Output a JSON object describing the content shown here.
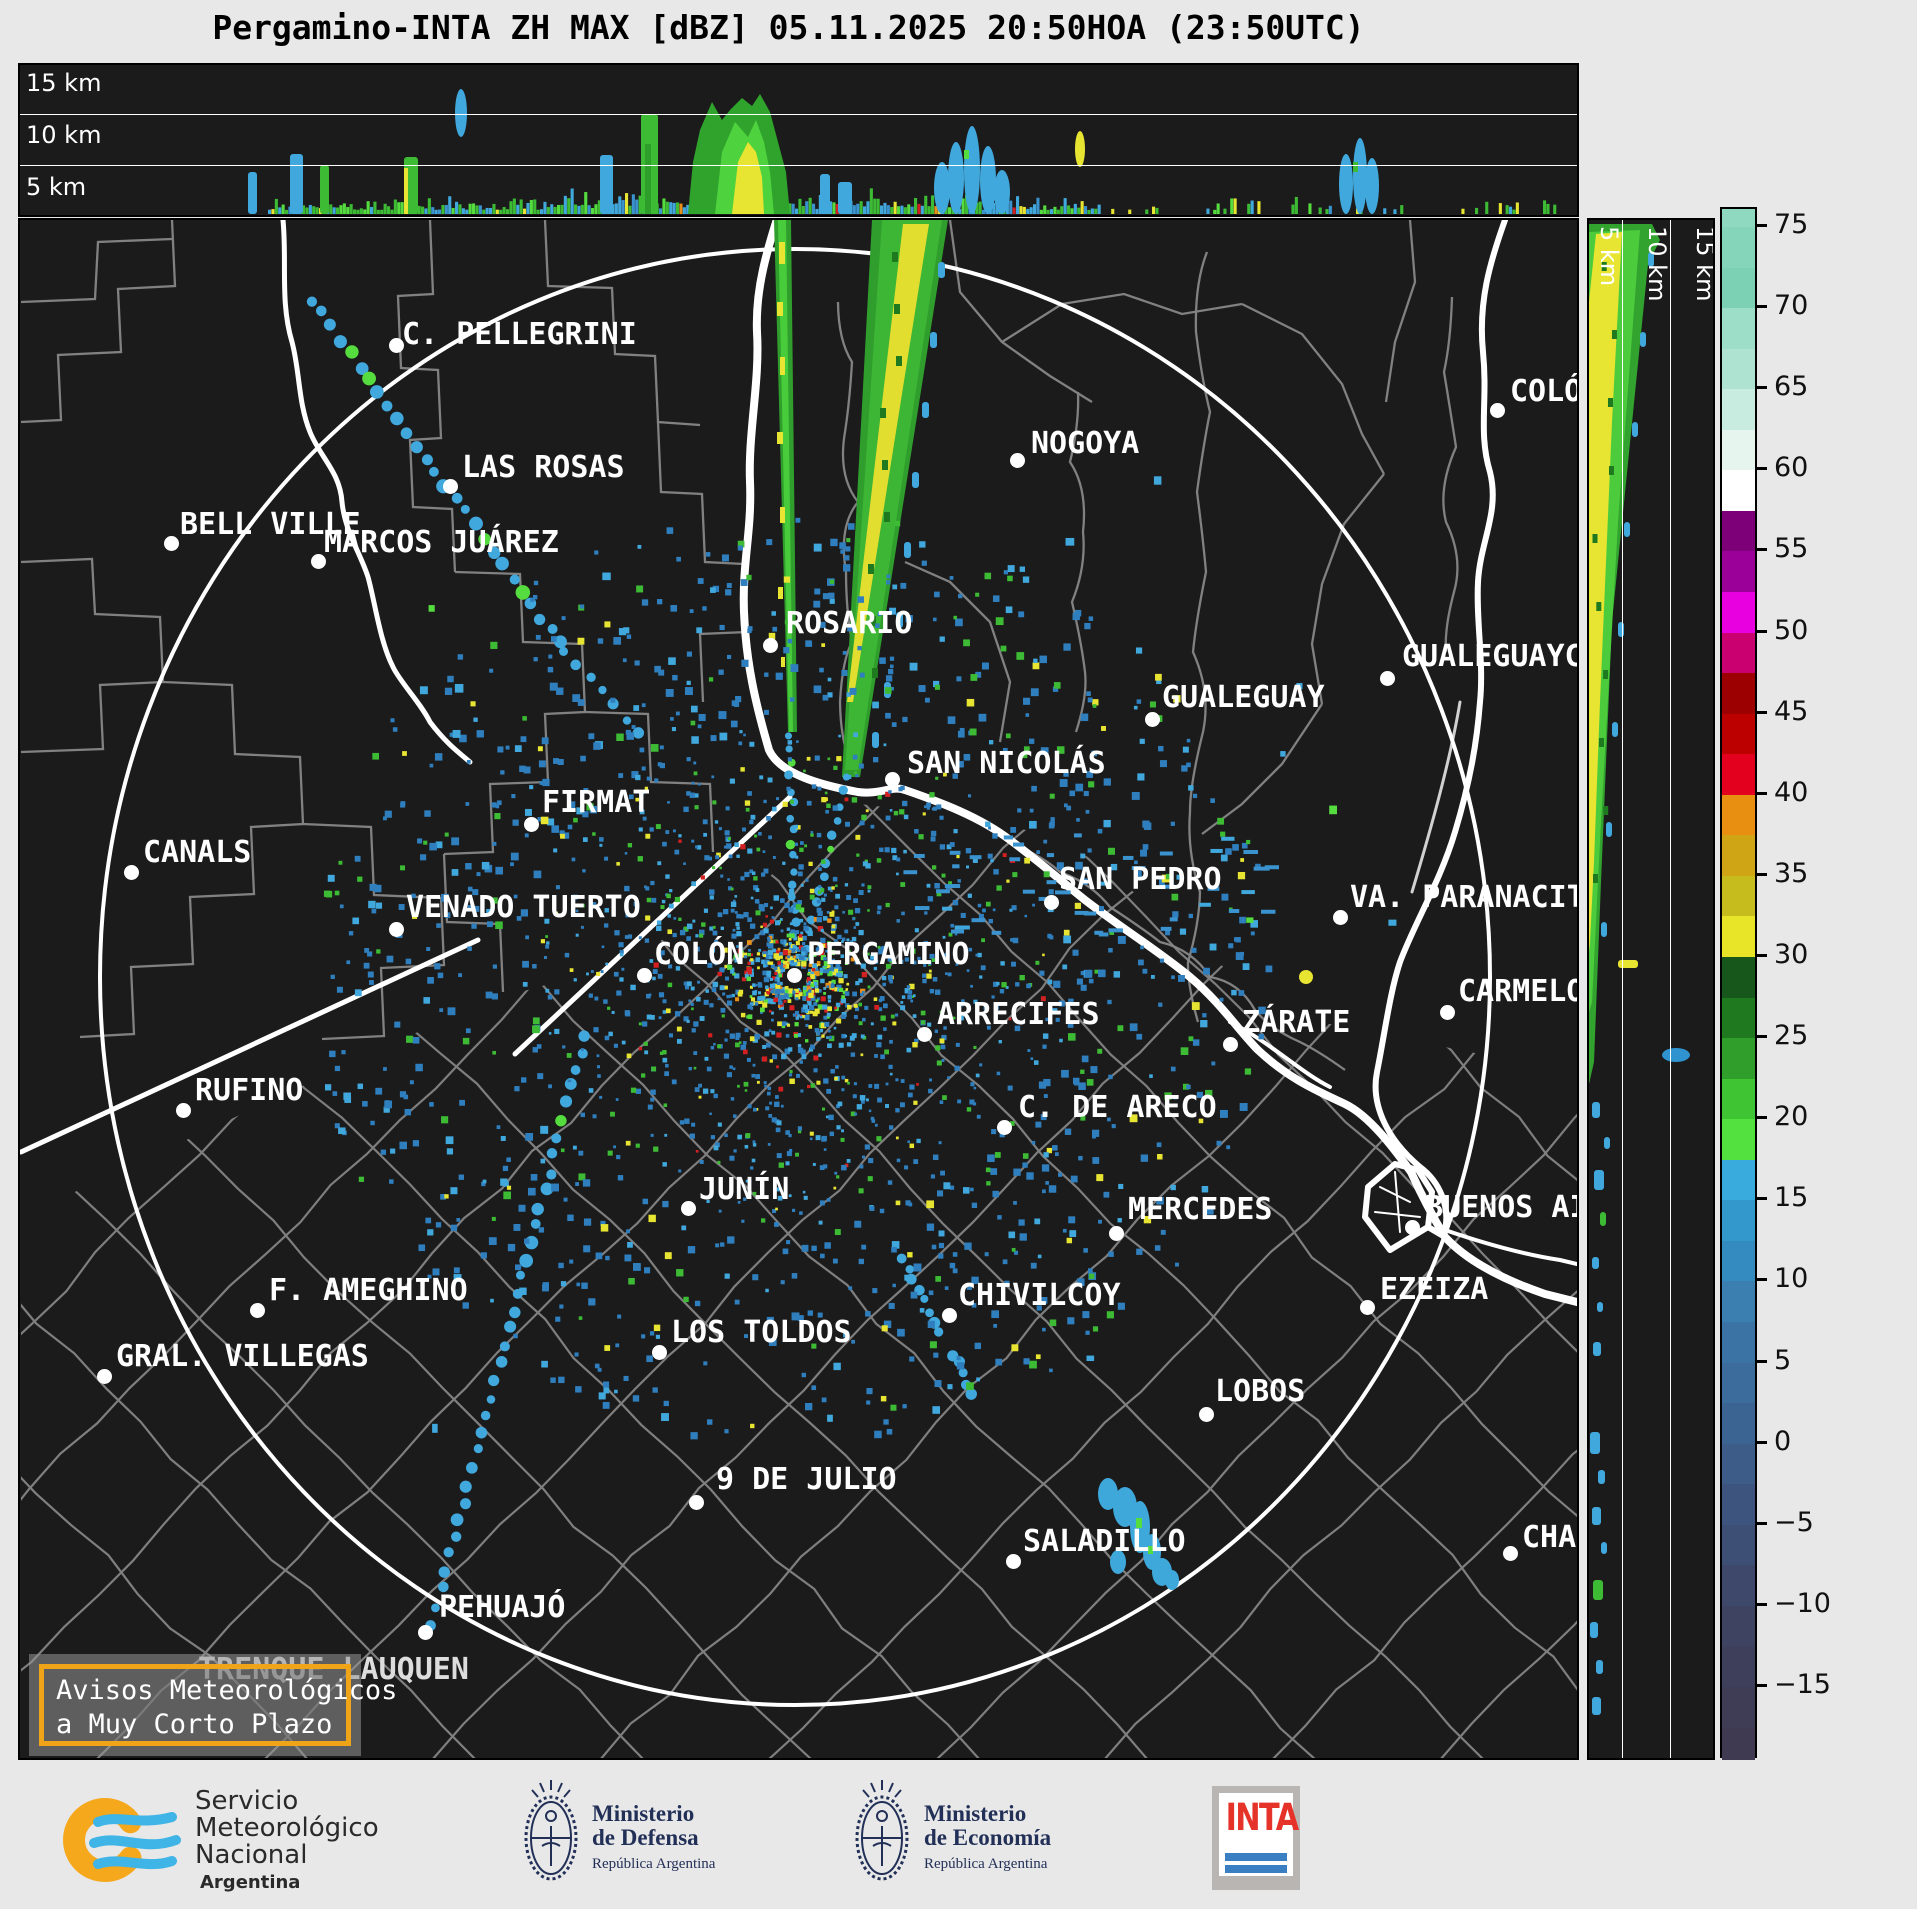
{
  "title": "Pergamino-INTA ZH MAX [dBZ] 05.11.2025 20:50HOA (23:50UTC)",
  "top_panel": {
    "altitudes": [
      "15 km",
      "10 km",
      "5 km"
    ]
  },
  "side_panel": {
    "altitudes": [
      "5 km",
      "10 km",
      "15 km"
    ]
  },
  "colorbar": {
    "tick_labels": [
      "75",
      "70",
      "65",
      "60",
      "55",
      "50",
      "45",
      "40",
      "35",
      "30",
      "25",
      "20",
      "15",
      "10",
      "5",
      "0",
      "−5",
      "−10",
      "−15"
    ],
    "colors": [
      "#8fd9c0",
      "#85d5ba",
      "#7cd1b4",
      "#9cdec8",
      "#aee3d1",
      "#c8ecdf",
      "#e6f6ef",
      "#ffffff",
      "#7d0078",
      "#9b0098",
      "#e800e0",
      "#cb0070",
      "#9c0000",
      "#bc0000",
      "#e3001e",
      "#e88f12",
      "#cfa515",
      "#c6bc1e",
      "#e8e428",
      "#17571b",
      "#1f7a1f",
      "#2f9e2a",
      "#3fc433",
      "#52e13e",
      "#39abdc",
      "#3399cd",
      "#338bbf",
      "#3a7fb0",
      "#3b74a4",
      "#3c6c9b",
      "#3c6492",
      "#3d5c88",
      "#3d557e",
      "#3d4f74",
      "#3e486a",
      "#3e4361",
      "#3e3f5a",
      "#3f3c55",
      "#3f3a51"
    ]
  },
  "map": {
    "cities": [
      {
        "name": "C. PELLEGRINI",
        "label": [
          400,
          315
        ],
        "dot": [
          394,
          343
        ]
      },
      {
        "name": "LAS ROSAS",
        "label": [
          460,
          448
        ],
        "dot": [
          448,
          484
        ]
      },
      {
        "name": "BELL VILLE",
        "label": [
          178,
          505
        ],
        "dot": [
          169,
          541
        ]
      },
      {
        "name": "MARCOS JUÁREZ",
        "label": [
          322,
          523
        ],
        "dot": [
          316,
          559
        ]
      },
      {
        "name": "NOGOYA",
        "label": [
          1029,
          424
        ],
        "dot": [
          1015,
          458
        ]
      },
      {
        "name": "ROSARIO",
        "label": [
          784,
          604
        ],
        "dot": [
          768,
          643
        ]
      },
      {
        "name": "GUALEGUAY",
        "label": [
          1160,
          678
        ],
        "dot": [
          1150,
          717
        ]
      },
      {
        "name": "GUALEGUAYCHÚ",
        "label": [
          1400,
          637
        ],
        "dot": [
          1385,
          676
        ]
      },
      {
        "name": "COLÓN",
        "label": [
          1508,
          372
        ],
        "dot": [
          1495,
          408
        ]
      },
      {
        "name": "SAN NICOLÁS",
        "label": [
          905,
          744
        ],
        "dot": [
          890,
          777
        ]
      },
      {
        "name": "FIRMAT",
        "label": [
          540,
          783
        ],
        "dot": [
          529,
          822
        ]
      },
      {
        "name": "CANALS",
        "label": [
          141,
          833
        ],
        "dot": [
          129,
          870
        ]
      },
      {
        "name": "VENADO TUERTO",
        "label": [
          404,
          888
        ],
        "dot": [
          394,
          927
        ]
      },
      {
        "name": "SAN PEDRO",
        "label": [
          1057,
          860
        ],
        "dot": [
          1049,
          900
        ]
      },
      {
        "name": "VA. PARANACITO",
        "label": [
          1348,
          878
        ],
        "dot": [
          1338,
          915
        ]
      },
      {
        "name": "COLÓN",
        "label": [
          652,
          935
        ],
        "dot": [
          642,
          973
        ]
      },
      {
        "name": "PERGAMINO",
        "label": [
          805,
          935
        ],
        "dot": [
          792,
          973
        ]
      },
      {
        "name": "ARRECIFES",
        "label": [
          935,
          995
        ],
        "dot": [
          922,
          1032
        ]
      },
      {
        "name": "CARMELO",
        "label": [
          1456,
          972
        ],
        "dot": [
          1445,
          1010
        ]
      },
      {
        "name": "ZÁRATE",
        "label": [
          1240,
          1003
        ],
        "dot": [
          1228,
          1042
        ]
      },
      {
        "name": "RUFINO",
        "label": [
          193,
          1071
        ],
        "dot": [
          181,
          1108
        ]
      },
      {
        "name": "C. DE ARECO",
        "label": [
          1016,
          1088
        ],
        "dot": [
          1002,
          1125
        ]
      },
      {
        "name": "JUNÍN",
        "label": [
          697,
          1170
        ],
        "dot": [
          686,
          1206
        ]
      },
      {
        "name": "MERCEDES",
        "label": [
          1126,
          1190
        ],
        "dot": [
          1114,
          1231
        ]
      },
      {
        "name": "BUENOS AIRES",
        "label": [
          1423,
          1188
        ],
        "dot": [
          1410,
          1225
        ]
      },
      {
        "name": "F. AMEGHINO",
        "label": [
          267,
          1271
        ],
        "dot": [
          255,
          1308
        ]
      },
      {
        "name": "CHIVILCOY",
        "label": [
          956,
          1276
        ],
        "dot": [
          947,
          1313
        ]
      },
      {
        "name": "EZEIZA",
        "label": [
          1378,
          1270
        ],
        "dot": [
          1365,
          1305
        ]
      },
      {
        "name": "GRAL. VILLEGAS",
        "label": [
          114,
          1337
        ],
        "dot": [
          102,
          1374
        ]
      },
      {
        "name": "LOS TOLDOS",
        "label": [
          669,
          1313
        ],
        "dot": [
          657,
          1350
        ]
      },
      {
        "name": "LOBOS",
        "label": [
          1213,
          1372
        ],
        "dot": [
          1204,
          1412
        ]
      },
      {
        "name": "9 DE JULIO",
        "label": [
          714,
          1460
        ],
        "dot": [
          694,
          1500
        ]
      },
      {
        "name": "SALADILLO",
        "label": [
          1021,
          1522
        ],
        "dot": [
          1011,
          1559
        ]
      },
      {
        "name": "CHASCOMÚS",
        "label": [
          1520,
          1518
        ],
        "dot": [
          1508,
          1551
        ]
      },
      {
        "name": "PEHUAJÓ",
        "label": [
          437,
          1588
        ],
        "dot": [
          423,
          1630
        ]
      },
      {
        "name": "TRENQUE LAUQUEN",
        "label": [
          196,
          1650
        ],
        "dot": null,
        "behind": true
      }
    ],
    "warning_box": {
      "line1": "Avisos Meteorológicos",
      "line2": "a Muy Corto Plazo"
    }
  },
  "footer": {
    "smn": {
      "line1": "Servicio",
      "line2": "Meteorológico",
      "line3": "Nacional",
      "line4": "Argentina"
    },
    "defensa": {
      "title1": "Ministerio",
      "title2": "de Defensa",
      "subtitle": "República Argentina"
    },
    "economia": {
      "title1": "Ministerio",
      "title2": "de Economía",
      "subtitle": "República Argentina"
    },
    "inta": {
      "label": "INTA"
    }
  }
}
